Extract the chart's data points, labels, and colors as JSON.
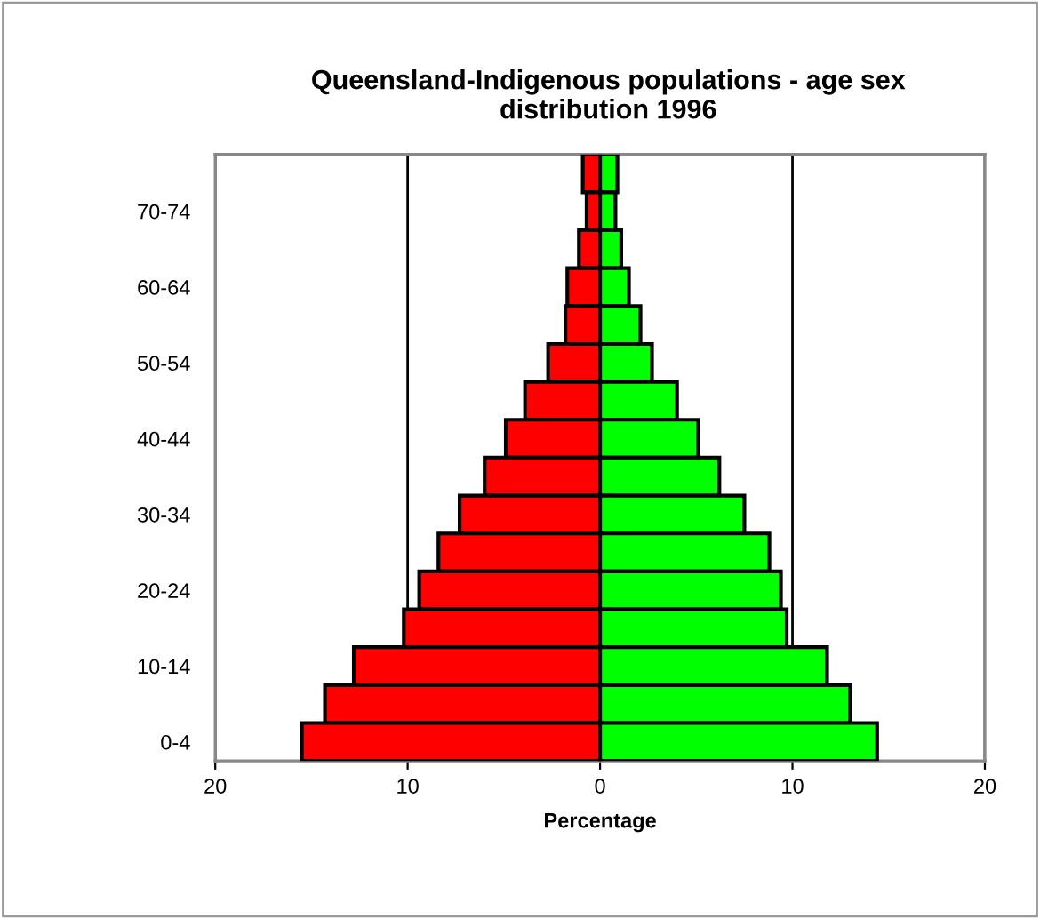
{
  "chart_data": {
    "type": "bar",
    "orientation": "horizontal",
    "stacked": true,
    "title": "Queensland-Indigenous populations - age sex distribution 1996",
    "xlabel": "Percentage",
    "categories": [
      null,
      "70-74",
      null,
      "60-64",
      null,
      "50-54",
      null,
      "40-44",
      null,
      "30-34",
      null,
      "20-24",
      null,
      "10-14",
      null,
      "0-4"
    ],
    "series": [
      {
        "color": "#ff0000",
        "values": [
          -0.9,
          -0.7,
          -1.1,
          -1.7,
          -1.8,
          -2.7,
          -3.9,
          -4.9,
          -6.0,
          -7.3,
          -8.4,
          -9.4,
          -10.2,
          -12.8,
          -14.3,
          -15.5
        ]
      },
      {
        "color": "#00ff00",
        "values": [
          0.9,
          0.8,
          1.1,
          1.5,
          2.1,
          2.7,
          4.0,
          5.1,
          6.2,
          7.5,
          8.8,
          9.4,
          9.7,
          11.8,
          13.0,
          14.4
        ]
      }
    ],
    "xlim": [
      -20,
      20
    ],
    "xticks": [
      {
        "value": -20,
        "label": "20"
      },
      {
        "value": -10,
        "label": "10"
      },
      0,
      10,
      20
    ],
    "grid": "x"
  }
}
